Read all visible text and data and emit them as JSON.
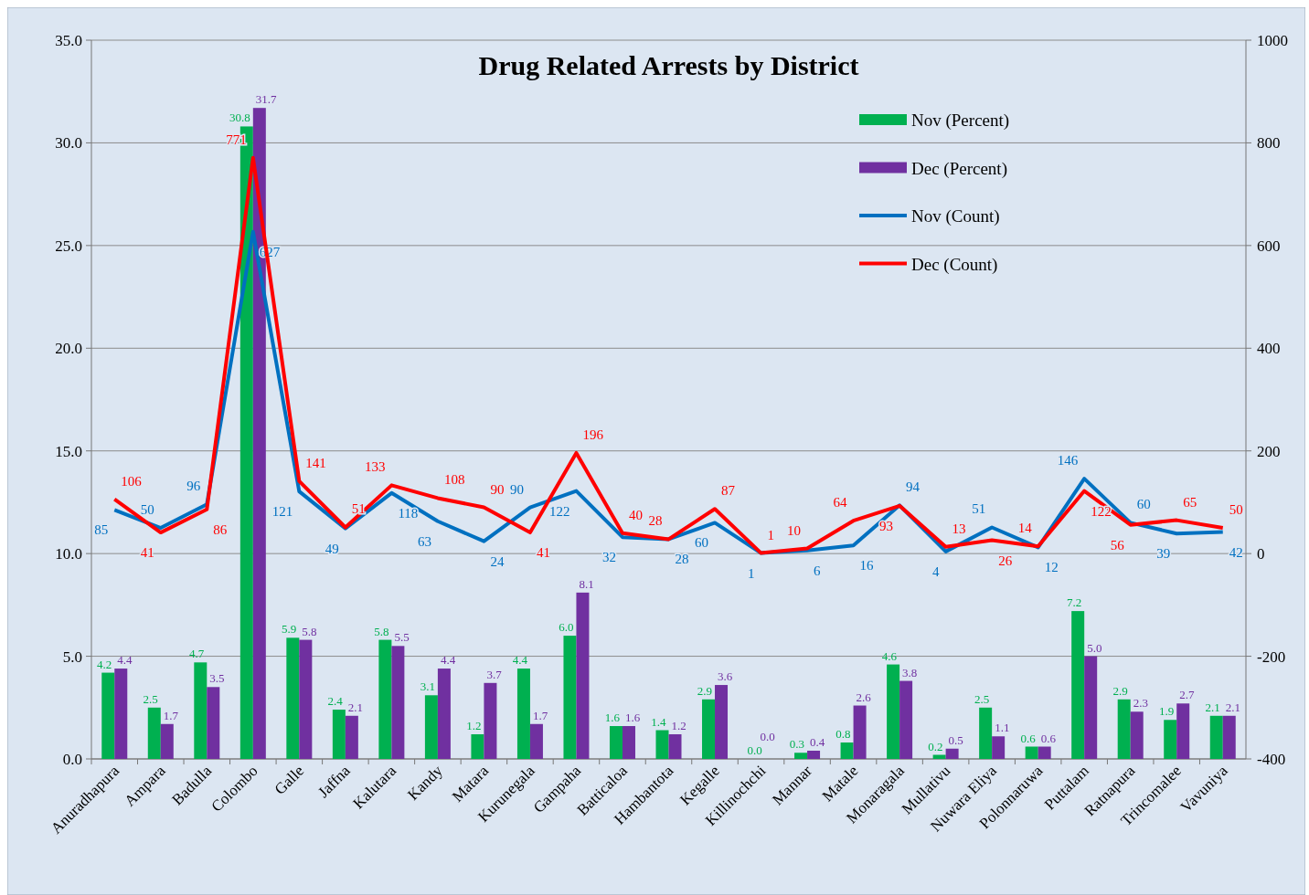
{
  "chart_data": {
    "type": "bar",
    "title": "Drug Related Arrests by  District",
    "categories": [
      "Anuradhapura",
      "Ampara",
      "Badulla",
      "Colombo",
      "Galle",
      "Jaffna",
      "Kalutara",
      "Kandy",
      "Matara",
      "Kurunegala",
      "Gampaha",
      "Batticaloa",
      "Hambantota",
      "Kegalle",
      "Killinochchi",
      "Mannar",
      "Matale",
      "Monaragala",
      "Mullativu",
      "Nuwara Eliya",
      "Polonnaruwa",
      "Puttalam",
      "Ratnapura",
      "Trincomalee",
      "Vavuniya"
    ],
    "series": [
      {
        "name": "Nov (Percent)",
        "color": "#00b050",
        "values": [
          4.2,
          2.5,
          4.7,
          30.8,
          5.9,
          2.4,
          5.8,
          3.1,
          1.2,
          4.4,
          6.0,
          1.6,
          1.4,
          2.9,
          0.0,
          0.3,
          0.8,
          4.6,
          0.2,
          2.5,
          0.6,
          7.2,
          2.9,
          1.9,
          2.1
        ],
        "value_labels": [
          "4.2",
          "2.5",
          "4.7",
          "30.8",
          "5.9",
          "2.4",
          "5.8",
          "3.1",
          "1.2",
          "4.4",
          "6.0",
          "1.6",
          "1.4",
          "2.9",
          "0.0",
          "0.3",
          "0.8",
          "4.6",
          "0.2",
          "2.5",
          "0.6",
          "7.2",
          "2.9",
          "1.9",
          "2.1"
        ]
      },
      {
        "name": "Dec (Percent)",
        "color": "#7030a0",
        "values": [
          4.4,
          1.7,
          3.5,
          31.7,
          5.8,
          2.1,
          5.5,
          4.4,
          3.7,
          1.7,
          8.1,
          1.6,
          1.2,
          3.6,
          0.0,
          0.4,
          2.6,
          3.8,
          0.5,
          1.1,
          0.6,
          5.0,
          2.3,
          2.7,
          2.1
        ],
        "value_labels": [
          "4.4",
          "1.7",
          "3.5",
          "31.7",
          "5.8",
          "2.1",
          "5.5",
          "4.4",
          "3.7",
          "1.7",
          "8.1",
          "1.6",
          "1.2",
          "3.6",
          "0.0",
          "0.4",
          "2.6",
          "3.8",
          "0.5",
          "1.1",
          "0.6",
          "5.0",
          "2.3",
          "2.7",
          "2.1"
        ]
      },
      {
        "name": "Nov (Count)",
        "type": "line",
        "axis": "y2",
        "color": "#0070c0",
        "values": [
          85,
          50,
          96,
          627,
          121,
          49,
          118,
          63,
          24,
          90,
          122,
          32,
          28,
          60,
          1,
          6,
          16,
          94,
          4,
          51,
          12,
          146,
          60,
          39,
          42
        ],
        "value_labels": [
          "85",
          "50",
          "96",
          "627",
          "121",
          "49",
          "118",
          "63",
          "24",
          "90",
          "122",
          "32",
          "28",
          "60",
          "1",
          "6",
          "16",
          "94",
          "4",
          "51",
          "12",
          "146",
          "60",
          "39",
          "42"
        ]
      },
      {
        "name": "Dec (Count)",
        "type": "line",
        "axis": "y2",
        "color": "#ff0000",
        "values": [
          106,
          41,
          86,
          771,
          141,
          51,
          133,
          108,
          90,
          41,
          196,
          40,
          28,
          87,
          1,
          10,
          64,
          93,
          13,
          26,
          14,
          122,
          56,
          65,
          50
        ],
        "value_labels": [
          "106",
          "41",
          "86",
          "771",
          "141",
          "51",
          "133",
          "108",
          "90",
          "41",
          "196",
          "40",
          "28",
          "87",
          "1",
          "10",
          "64",
          "93",
          "13",
          "26",
          "14",
          "122",
          "56",
          "65",
          "50"
        ]
      }
    ],
    "ylim": [
      0,
      35
    ],
    "yticks": [
      {
        "value": 0,
        "label": "0.0"
      },
      {
        "value": 5,
        "label": "5.0"
      },
      {
        "value": 10,
        "label": "10.0"
      },
      {
        "value": 15,
        "label": "15.0"
      },
      {
        "value": 20,
        "label": "20.0"
      },
      {
        "value": 25,
        "label": "25.0"
      },
      {
        "value": 30,
        "label": "30.0"
      },
      {
        "value": 35,
        "label": "35.0"
      }
    ],
    "y2lim": [
      -400,
      1000
    ],
    "y2ticks": [
      -400,
      -200,
      0,
      200,
      400,
      600,
      800,
      1000
    ],
    "grid": "y",
    "legend": "top right"
  }
}
